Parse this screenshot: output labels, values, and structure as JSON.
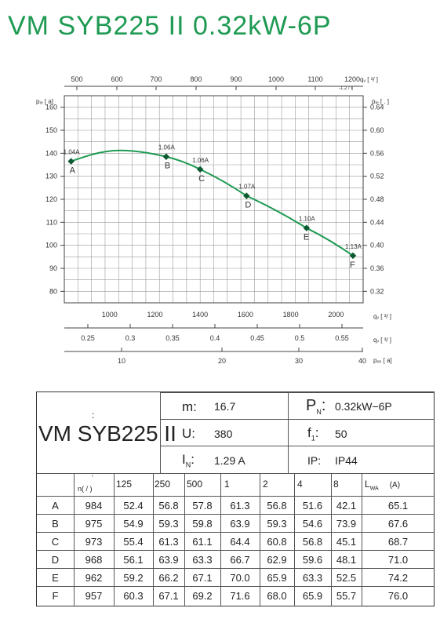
{
  "title": "VM SYB225 II 0.32kW-6P",
  "chart_data": {
    "type": "line",
    "series": [
      {
        "points": [
          {
            "label": "A",
            "current": "1.04A",
            "qv_m3h": 830,
            "pf_pa": 136.5
          },
          {
            "label": "B",
            "current": "1.06A",
            "qv_m3h": 1250,
            "pf_pa": 138.5
          },
          {
            "label": "C",
            "current": "1.06A",
            "qv_m3h": 1400,
            "pf_pa": 133
          },
          {
            "label": "D",
            "current": "1.07A",
            "qv_m3h": 1605,
            "pf_pa": 121.5
          },
          {
            "label": "E",
            "current": "1.10A",
            "qv_m3h": 1870,
            "pf_pa": 107.5
          },
          {
            "label": "F",
            "current": "1.13A",
            "qv_m3h": 2075,
            "pf_pa": 95.5
          }
        ]
      }
    ],
    "x_bottom_ticks": [
      "1000",
      "1200",
      "1400",
      "1600",
      "1800",
      "2000"
    ],
    "x_bottom_label": "qᵥ [   ³/  ]",
    "x_bottom_range": [
      800,
      2120
    ],
    "x_top_ticks": [
      "500",
      "600",
      "700",
      "800",
      "900",
      "1000",
      "1100",
      "1200"
    ],
    "x_top_label": "qᵥ [   ³/   ]",
    "x_top_extra": "-1.2   /   ³",
    "y_left_ticks": [
      "80",
      "90",
      "100",
      "110",
      "120",
      "130",
      "140",
      "150",
      "160"
    ],
    "y_left_label": "pᵢₑ [   a]",
    "y_left_range": [
      75,
      165
    ],
    "y_right_ticks": [
      "0.32",
      "0.36",
      "0.40",
      "0.44",
      "0.48",
      "0.52",
      "0.56",
      "0.60",
      "0.64"
    ],
    "y_right_label": "pᵢₑ [              .     ]",
    "axis2_ticks": [
      "0.25",
      "0.3",
      "0.35",
      "0.4",
      "0.45",
      "0.5",
      "0.55"
    ],
    "axis2_label": "qᵥ [   ³/  ]",
    "axis3_ticks": [
      "10",
      "20",
      "30",
      "40"
    ],
    "axis3_label": "pₑₑ [   a]",
    "grid": true,
    "line_color": "#1e9a52"
  },
  "table": {
    "colon": ":",
    "model": "VM SYB225 II",
    "specs": {
      "m_label": "m:",
      "m_value": "16.7",
      "pn_label": "P",
      "pn_sub": "N",
      "pn_colon": ":",
      "pn_value": "0.32kW−6P",
      "u_label": "U:",
      "u_value": "380",
      "f_label": "f",
      "f_sub": "1",
      "f_colon": ":",
      "f_value": "50",
      "in_label": "I",
      "in_sub": "N",
      "in_colon": ":",
      "in_value": "1.29  A",
      "ip_label": "IP:",
      "ip_value": "IP44"
    },
    "header": {
      "n_label": "n(  /  )",
      "n_tick": "'",
      "freqs": [
        "125",
        "250",
        "500",
        "1",
        "2",
        "4",
        "8"
      ],
      "lwa_label": "L",
      "lwa_sub": "WA",
      "lwa_unit": "(A)"
    },
    "rows": [
      {
        "label": "A",
        "n": "984",
        "vals": [
          "52.4",
          "56.8",
          "57.8",
          "61.3",
          "56.8",
          "51.6",
          "42.1"
        ],
        "lwa": "65.1"
      },
      {
        "label": "B",
        "n": "975",
        "vals": [
          "54.9",
          "59.3",
          "59.8",
          "63.9",
          "59.3",
          "54.6",
          "73.9"
        ],
        "lwa": "67.6"
      },
      {
        "label": "C",
        "n": "973",
        "vals": [
          "55.4",
          "61.3",
          "61.1",
          "64.4",
          "60.8",
          "56.8",
          "45.1"
        ],
        "lwa": "68.7"
      },
      {
        "label": "D",
        "n": "968",
        "vals": [
          "56.1",
          "63.9",
          "63.3",
          "66.7",
          "62.9",
          "59.6",
          "48.1"
        ],
        "lwa": "71.0"
      },
      {
        "label": "E",
        "n": "962",
        "vals": [
          "59.2",
          "66.2",
          "67.1",
          "70.0",
          "65.9",
          "63.3",
          "52.5"
        ],
        "lwa": "74.2"
      },
      {
        "label": "F",
        "n": "957",
        "vals": [
          "60.3",
          "67.1",
          "69.2",
          "71.6",
          "68.0",
          "65.9",
          "55.7"
        ],
        "lwa": "76.0"
      }
    ]
  }
}
